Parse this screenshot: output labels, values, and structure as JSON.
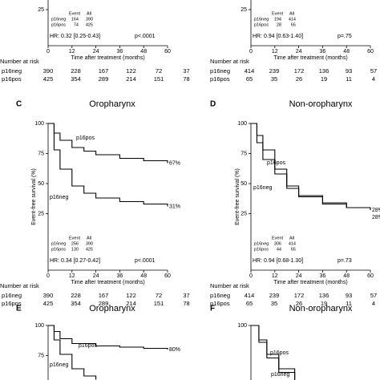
{
  "chart_data": [
    {
      "type": "line",
      "xlabel": "Time after treatment (months)",
      "xlim": [
        0,
        60
      ],
      "xticks": [
        0,
        12,
        24,
        36,
        48,
        60
      ],
      "ylim": [
        0,
        100
      ],
      "yticks": [
        25
      ],
      "series": [],
      "legend": {
        "header": [
          "Event",
          "All"
        ],
        "rows": [
          {
            "group": "p16neg",
            "events": 164,
            "all": 390
          },
          {
            "group": "p16pos",
            "events": 74,
            "all": 425
          }
        ]
      },
      "hr": "HR: 0.32 [0.25-0.43]",
      "p": "p<.0001",
      "risk": {
        "heading": "Number at risk",
        "rows": [
          {
            "group": "p16neg",
            "values": [
              390,
              228,
              167,
              122,
              72,
              37
            ]
          },
          {
            "group": "p16pos",
            "values": [
              425,
              354,
              289,
              214,
              151,
              78
            ]
          }
        ]
      }
    },
    {
      "type": "line",
      "xlabel": "Time after treatment (months)",
      "xlim": [
        0,
        60
      ],
      "xticks": [
        0,
        12,
        24,
        36,
        48,
        60
      ],
      "ylim": [
        0,
        100
      ],
      "yticks": [
        25
      ],
      "series": [],
      "legend": {
        "header": [
          "Event",
          "All"
        ],
        "rows": [
          {
            "group": "p16neg",
            "events": 194,
            "all": 414
          },
          {
            "group": "p16pos",
            "events": 28,
            "all": 65
          }
        ]
      },
      "hr": "HR: 0.94 [0.63-1.40]",
      "p": "p=.75",
      "risk": {
        "heading": "Number at risk",
        "rows": [
          {
            "group": "p16neg",
            "values": [
              414,
              239,
              172,
              136,
              93,
              57
            ]
          },
          {
            "group": "p16pos",
            "values": [
              65,
              35,
              26,
              19,
              11,
              4
            ]
          }
        ]
      }
    },
    {
      "type": "line",
      "letter": "C",
      "title": "Oropharynx",
      "ylabel": "Event-free survival (%)",
      "xlabel": "Time after treatment (months)",
      "xlim": [
        0,
        60
      ],
      "xticks": [
        0,
        12,
        24,
        36,
        48,
        60
      ],
      "ylim": [
        -22,
        100
      ],
      "yticks": [
        25,
        50,
        75,
        100
      ],
      "series": [
        {
          "name": "p16pos",
          "color": "#000000",
          "x": [
            0,
            3,
            6,
            12,
            18,
            24,
            36,
            48,
            60
          ],
          "values": [
            100,
            92,
            86,
            80,
            77,
            74,
            71,
            69,
            67
          ],
          "value_labels": [
            null,
            null,
            null,
            null,
            null,
            null,
            null,
            null,
            "67%"
          ]
        },
        {
          "name": "p16neg",
          "color": "#000000",
          "x": [
            0,
            3,
            6,
            12,
            18,
            24,
            36,
            48,
            60
          ],
          "values": [
            100,
            78,
            62,
            48,
            42,
            38,
            35,
            33,
            31
          ],
          "value_labels": [
            null,
            null,
            null,
            null,
            null,
            null,
            null,
            null,
            "31%"
          ]
        }
      ],
      "legend": {
        "header": [
          "Event",
          "All"
        ],
        "rows": [
          {
            "group": "p16neg",
            "events": 256,
            "all": 390
          },
          {
            "group": "p16pos",
            "events": 130,
            "all": 425
          }
        ]
      },
      "hr": "HR: 0.34 [0.27-0.42]",
      "p": "p<.0001",
      "risk": {
        "heading": "Number at risk",
        "rows": [
          {
            "group": "p16neg",
            "values": [
              390,
              228,
              167,
              122,
              72,
              37
            ]
          },
          {
            "group": "p16pos",
            "values": [
              425,
              354,
              289,
              214,
              151,
              78
            ]
          }
        ]
      }
    },
    {
      "type": "line",
      "letter": "D",
      "title": "Non-oropharynx",
      "ylabel": "Event-free survival (%)",
      "xlabel": "Time after treatment (months)",
      "xlim": [
        0,
        60
      ],
      "xticks": [
        0,
        12,
        24,
        36,
        48,
        60
      ],
      "ylim": [
        -22,
        100
      ],
      "yticks": [
        25,
        50,
        75,
        100
      ],
      "series": [
        {
          "name": "p16pos",
          "color": "#000000",
          "x": [
            0,
            3,
            6,
            12,
            18,
            24,
            36,
            48,
            60
          ],
          "values": [
            100,
            90,
            78,
            62,
            48,
            40,
            34,
            30,
            28
          ],
          "value_labels": [
            null,
            null,
            null,
            null,
            null,
            null,
            null,
            null,
            "28%"
          ]
        },
        {
          "name": "p16neg",
          "color": "#000000",
          "x": [
            0,
            3,
            6,
            12,
            18,
            24,
            36,
            48,
            60
          ],
          "values": [
            100,
            84,
            70,
            58,
            46,
            39,
            33,
            30,
            28
          ],
          "value_labels": [
            null,
            null,
            null,
            null,
            null,
            null,
            null,
            null,
            "28%"
          ]
        }
      ],
      "legend": {
        "header": [
          "Event",
          "All"
        ],
        "rows": [
          {
            "group": "p16neg",
            "events": 306,
            "all": 414
          },
          {
            "group": "p16pos",
            "events": 44,
            "all": 65
          }
        ]
      },
      "hr": "HR: 0.94 [0.68-1.30]",
      "p": "p=.73",
      "risk": {
        "heading": "Number at risk",
        "rows": [
          {
            "group": "p16neg",
            "values": [
              414,
              239,
              172,
              136,
              93,
              57
            ]
          },
          {
            "group": "p16pos",
            "values": [
              65,
              35,
              26,
              19,
              11,
              4
            ]
          }
        ]
      }
    },
    {
      "type": "line",
      "letter": "E",
      "title": "Oropharynx",
      "xlim": [
        0,
        60
      ],
      "ylim": [
        -22,
        100
      ],
      "yticks": [
        75,
        100
      ],
      "series": [
        {
          "name": "p16pos",
          "color": "#000000",
          "x": [
            0,
            3,
            6,
            12,
            24,
            36,
            48,
            60
          ],
          "values": [
            100,
            95,
            89,
            85,
            83,
            82,
            81,
            80
          ],
          "value_labels": [
            null,
            null,
            null,
            null,
            null,
            null,
            null,
            "80%"
          ]
        },
        {
          "name": "p16neg",
          "color": "#000000",
          "x": [
            0,
            3,
            6,
            12,
            18,
            24
          ],
          "values": [
            100,
            88,
            76,
            64,
            58,
            55
          ]
        }
      ]
    },
    {
      "type": "line",
      "letter": "F",
      "title": "Non-oropharynx",
      "xlim": [
        0,
        60
      ],
      "ylim": [
        -22,
        100
      ],
      "yticks": [
        100
      ],
      "series": [
        {
          "name": "p16pos",
          "color": "#000000",
          "x": [
            0,
            4,
            8,
            14,
            22
          ],
          "values": [
            100,
            88,
            76,
            64,
            55
          ]
        },
        {
          "name": "p16neg",
          "color": "#000000",
          "x": [
            0,
            4,
            8,
            14,
            22
          ],
          "values": [
            100,
            86,
            73,
            61,
            52
          ]
        }
      ]
    }
  ]
}
